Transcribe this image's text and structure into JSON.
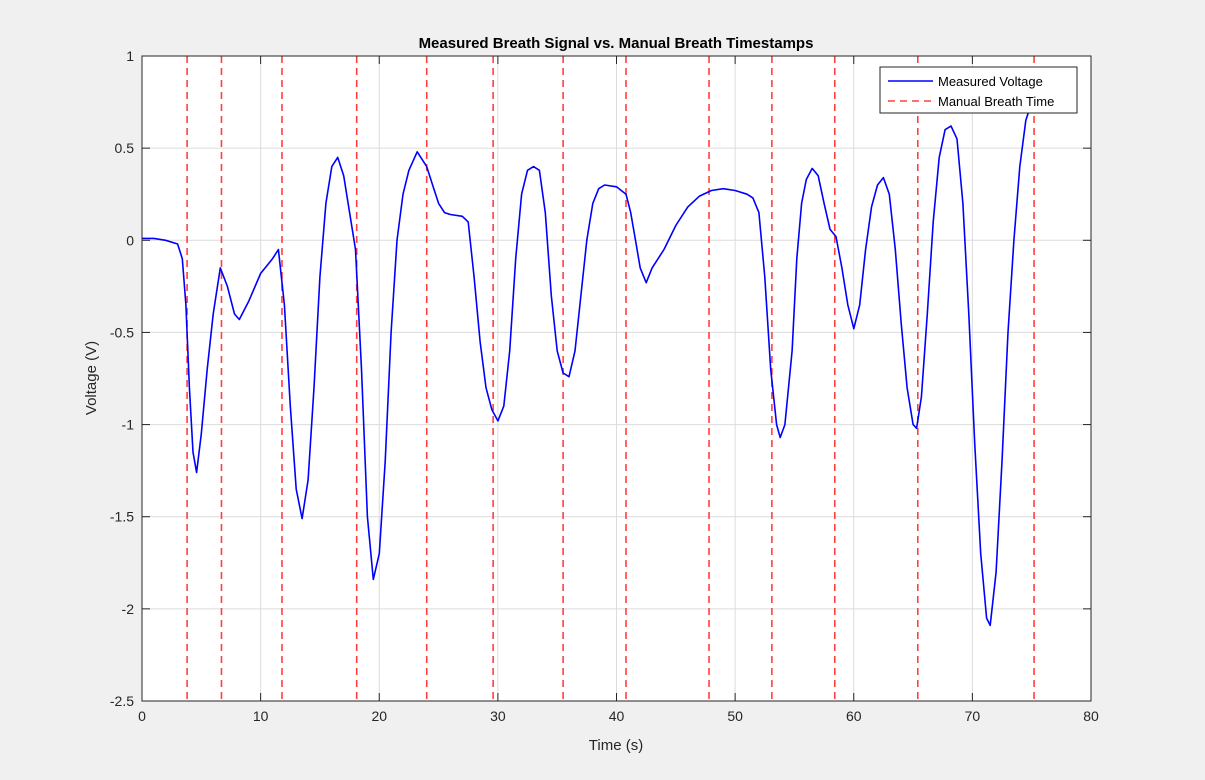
{
  "chart_data": {
    "type": "line",
    "title": "Measured Breath Signal vs. Manual Breath Timestamps",
    "xlabel": "Time (s)",
    "ylabel": "Voltage (V)",
    "xlim": [
      0,
      80
    ],
    "ylim": [
      -2.5,
      1
    ],
    "x_ticks": [
      0,
      10,
      20,
      30,
      40,
      50,
      60,
      70,
      80
    ],
    "y_ticks": [
      1,
      0.5,
      0,
      -0.5,
      -1,
      -1.5,
      -2,
      -2.5
    ],
    "grid": true,
    "legend_position": "top-right",
    "series": [
      {
        "name": "Measured Voltage",
        "style": "solid",
        "color": "#0000ff",
        "points": [
          [
            0.0,
            0.01
          ],
          [
            1.0,
            0.01
          ],
          [
            2.0,
            0.0
          ],
          [
            3.0,
            -0.02
          ],
          [
            3.4,
            -0.1
          ],
          [
            3.7,
            -0.35
          ],
          [
            4.0,
            -0.8
          ],
          [
            4.3,
            -1.15
          ],
          [
            4.6,
            -1.26
          ],
          [
            5.0,
            -1.05
          ],
          [
            5.5,
            -0.7
          ],
          [
            6.0,
            -0.4
          ],
          [
            6.6,
            -0.15
          ],
          [
            7.2,
            -0.25
          ],
          [
            7.8,
            -0.4
          ],
          [
            8.2,
            -0.43
          ],
          [
            9.0,
            -0.33
          ],
          [
            10.0,
            -0.18
          ],
          [
            11.0,
            -0.1
          ],
          [
            11.5,
            -0.05
          ],
          [
            12.0,
            -0.35
          ],
          [
            12.5,
            -0.9
          ],
          [
            13.0,
            -1.35
          ],
          [
            13.5,
            -1.51
          ],
          [
            14.0,
            -1.3
          ],
          [
            14.5,
            -0.8
          ],
          [
            15.0,
            -0.2
          ],
          [
            15.5,
            0.2
          ],
          [
            16.0,
            0.4
          ],
          [
            16.5,
            0.45
          ],
          [
            17.0,
            0.35
          ],
          [
            17.5,
            0.15
          ],
          [
            18.0,
            -0.05
          ],
          [
            18.5,
            -0.7
          ],
          [
            19.0,
            -1.5
          ],
          [
            19.5,
            -1.84
          ],
          [
            20.0,
            -1.7
          ],
          [
            20.5,
            -1.2
          ],
          [
            21.0,
            -0.5
          ],
          [
            21.5,
            0.0
          ],
          [
            22.0,
            0.25
          ],
          [
            22.5,
            0.38
          ],
          [
            23.2,
            0.48
          ],
          [
            24.0,
            0.4
          ],
          [
            24.5,
            0.3
          ],
          [
            25.0,
            0.2
          ],
          [
            25.5,
            0.15
          ],
          [
            26.0,
            0.14
          ],
          [
            27.0,
            0.13
          ],
          [
            27.5,
            0.1
          ],
          [
            28.0,
            -0.2
          ],
          [
            28.5,
            -0.55
          ],
          [
            29.0,
            -0.8
          ],
          [
            29.5,
            -0.92
          ],
          [
            30.0,
            -0.98
          ],
          [
            30.5,
            -0.9
          ],
          [
            31.0,
            -0.6
          ],
          [
            31.5,
            -0.1
          ],
          [
            32.0,
            0.25
          ],
          [
            32.5,
            0.38
          ],
          [
            33.0,
            0.4
          ],
          [
            33.5,
            0.38
          ],
          [
            34.0,
            0.15
          ],
          [
            34.5,
            -0.3
          ],
          [
            35.0,
            -0.6
          ],
          [
            35.5,
            -0.72
          ],
          [
            36.0,
            -0.74
          ],
          [
            36.5,
            -0.6
          ],
          [
            37.0,
            -0.3
          ],
          [
            37.5,
            0.0
          ],
          [
            38.0,
            0.2
          ],
          [
            38.5,
            0.28
          ],
          [
            39.0,
            0.3
          ],
          [
            40.0,
            0.29
          ],
          [
            40.8,
            0.25
          ],
          [
            41.2,
            0.15
          ],
          [
            41.6,
            0.0
          ],
          [
            42.0,
            -0.15
          ],
          [
            42.5,
            -0.23
          ],
          [
            43.0,
            -0.15
          ],
          [
            44.0,
            -0.05
          ],
          [
            45.0,
            0.08
          ],
          [
            46.0,
            0.18
          ],
          [
            47.0,
            0.24
          ],
          [
            48.0,
            0.27
          ],
          [
            49.0,
            0.28
          ],
          [
            50.0,
            0.27
          ],
          [
            51.0,
            0.25
          ],
          [
            51.5,
            0.23
          ],
          [
            52.0,
            0.15
          ],
          [
            52.5,
            -0.2
          ],
          [
            53.0,
            -0.7
          ],
          [
            53.5,
            -1.0
          ],
          [
            53.8,
            -1.07
          ],
          [
            54.2,
            -1.0
          ],
          [
            54.8,
            -0.6
          ],
          [
            55.2,
            -0.1
          ],
          [
            55.6,
            0.2
          ],
          [
            56.0,
            0.33
          ],
          [
            56.5,
            0.39
          ],
          [
            57.0,
            0.35
          ],
          [
            57.5,
            0.2
          ],
          [
            58.0,
            0.06
          ],
          [
            58.5,
            0.02
          ],
          [
            59.0,
            -0.15
          ],
          [
            59.5,
            -0.35
          ],
          [
            60.0,
            -0.48
          ],
          [
            60.5,
            -0.35
          ],
          [
            61.0,
            -0.05
          ],
          [
            61.5,
            0.18
          ],
          [
            62.0,
            0.3
          ],
          [
            62.5,
            0.34
          ],
          [
            63.0,
            0.25
          ],
          [
            63.5,
            -0.05
          ],
          [
            64.0,
            -0.45
          ],
          [
            64.5,
            -0.8
          ],
          [
            65.0,
            -1.0
          ],
          [
            65.3,
            -1.02
          ],
          [
            65.7,
            -0.85
          ],
          [
            66.2,
            -0.4
          ],
          [
            66.7,
            0.1
          ],
          [
            67.2,
            0.45
          ],
          [
            67.7,
            0.6
          ],
          [
            68.2,
            0.62
          ],
          [
            68.7,
            0.55
          ],
          [
            69.2,
            0.2
          ],
          [
            69.7,
            -0.4
          ],
          [
            70.2,
            -1.1
          ],
          [
            70.7,
            -1.7
          ],
          [
            71.2,
            -2.05
          ],
          [
            71.5,
            -2.09
          ],
          [
            72.0,
            -1.8
          ],
          [
            72.5,
            -1.2
          ],
          [
            73.0,
            -0.5
          ],
          [
            73.5,
            0.0
          ],
          [
            74.0,
            0.4
          ],
          [
            74.5,
            0.65
          ],
          [
            75.0,
            0.75
          ]
        ]
      },
      {
        "name": "Manual Breath Time",
        "style": "dashed",
        "color": "#ff4040",
        "x": [
          3.8,
          6.7,
          11.8,
          18.1,
          24.0,
          29.6,
          35.5,
          40.8,
          47.8,
          53.1,
          58.4,
          65.4,
          75.2
        ]
      }
    ]
  }
}
